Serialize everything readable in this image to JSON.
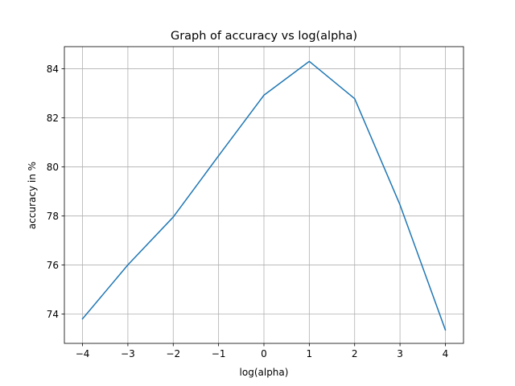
{
  "chart_data": {
    "type": "line",
    "title": "Graph of accuracy vs log(alpha)",
    "xlabel": "log(alpha)",
    "ylabel": "accuracy in %",
    "xlim": [
      -4.4,
      4.4
    ],
    "ylim": [
      72.8,
      84.9
    ],
    "grid": true,
    "x_ticks": [
      -4,
      -3,
      -2,
      -1,
      0,
      1,
      2,
      3,
      4
    ],
    "x_tick_labels": [
      "−4",
      "−3",
      "−2",
      "−1",
      "0",
      "1",
      "2",
      "3",
      "4"
    ],
    "y_ticks": [
      74,
      76,
      78,
      80,
      82,
      84
    ],
    "y_tick_labels": [
      "74",
      "76",
      "78",
      "80",
      "82",
      "84"
    ],
    "series": [
      {
        "x": [
          -4,
          -3,
          -2,
          -1,
          0,
          1,
          2,
          3,
          4
        ],
        "values": [
          73.8,
          76.0,
          77.95,
          80.45,
          82.92,
          84.3,
          82.78,
          78.45,
          73.35
        ],
        "color": "#1f77b4"
      }
    ]
  }
}
